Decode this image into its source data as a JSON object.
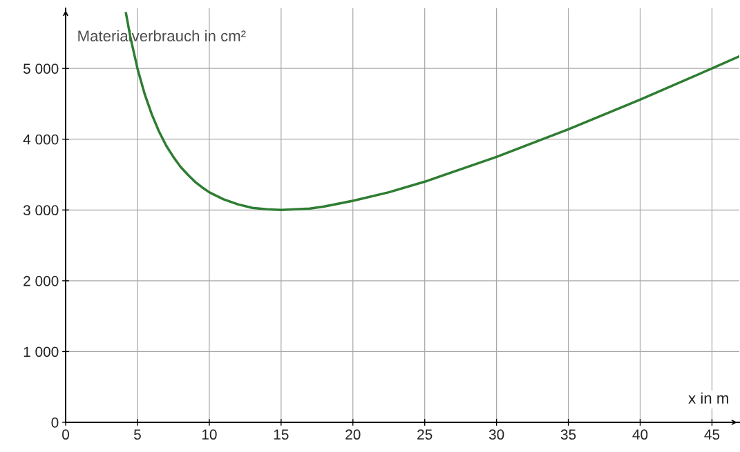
{
  "chart_data": {
    "type": "line",
    "xlabel": "x in m",
    "ylabel": "Materialverbrauch in cm²",
    "x": [
      4.2,
      4.5,
      5,
      5.5,
      6,
      6.5,
      7,
      7.5,
      8,
      8.5,
      9,
      9.5,
      10,
      11,
      12,
      13,
      14,
      15,
      16,
      17,
      18,
      20,
      22.5,
      25,
      30,
      35,
      40,
      45,
      46.9
    ],
    "series": [
      {
        "color": "#2e7d32",
        "values": [
          5780,
          5450,
          5000,
          4640,
          4350,
          4110,
          3910,
          3750,
          3610,
          3500,
          3400,
          3320,
          3250,
          3150,
          3080,
          3030,
          3010,
          3000,
          3010,
          3020,
          3050,
          3130,
          3250,
          3400,
          3750,
          4140,
          4560,
          5000,
          5170
        ]
      }
    ],
    "xlim": [
      0,
      46.9
    ],
    "ylim": [
      0,
      5850
    ],
    "xticks": [
      0,
      5,
      10,
      15,
      20,
      25,
      30,
      35,
      40,
      45
    ],
    "yticks": [
      0,
      {
        "value": 1000,
        "label": "1 000"
      },
      {
        "value": 2000,
        "label": "2 000"
      },
      {
        "value": 3000,
        "label": "3 000"
      },
      {
        "value": 4000,
        "label": "4 000"
      },
      {
        "value": 5000,
        "label": "5 000"
      }
    ],
    "grid": true,
    "legend": false,
    "marker": "none",
    "line_style": "solid"
  }
}
